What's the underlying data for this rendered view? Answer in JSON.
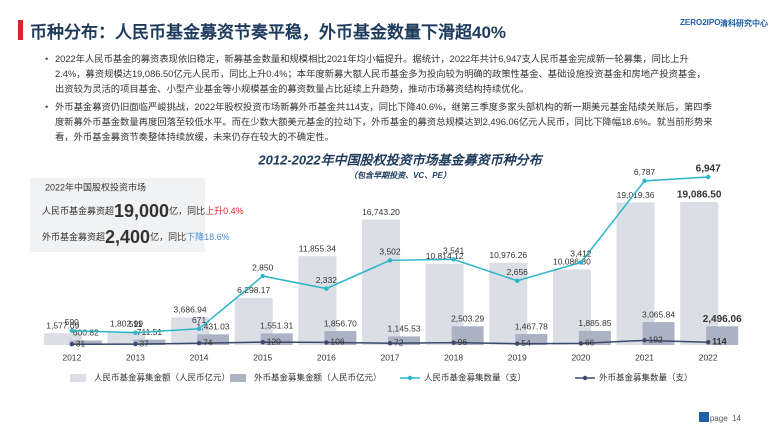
{
  "header": {
    "title": "币种分布：人民币基金募资节奏平稳，外币基金数量下滑超40%",
    "logos": [
      "ZERO2IPO",
      "清科研究中心"
    ]
  },
  "bullets": [
    "2022年人民币基金的募资表现依旧稳定，新募基金数量和规模相比2021年均小幅提升。据统计，2022年共计6,947支人民币基金完成新一轮募集，同比上升2.4%，募资规模达19,086.50亿元人民币，同比上升0.4%；本年度新募大额人民币基金多为投向较为明确的政策性基金、基础设施投资基金和房地产投资基金，出资较为灵活的项目基金、小型产业基金等小规模基金的募资数量占比延续上升趋势，推动市场募资结构持续优化。",
    "外币基金募资仍旧面临严峻挑战，2022年股权投资市场新募外币基金共114支，同比下降40.6%，继第三季度多家头部机构的新一期美元基金陆续关账后，第四季度新募外币基金数量再度回落至较低水平。而在少数大额美元基金的拉动下，外币基金的募资总规模达到2,496.06亿元人民币，同比下降幅18.6%。就当前形势来看，外币基金募资节奏整体持续放缓，未来仍存在较大的不确定性。"
  ],
  "info_box": {
    "heading": "2022年中国股权投资市场",
    "rmb_prefix": "人民币基金募资超",
    "rmb_value": "19,000",
    "rmb_suffix": "亿，同比",
    "rmb_change": "上升0.4%",
    "fx_prefix": "外币基金募资超",
    "fx_value": "2,400",
    "fx_suffix": "亿，同比",
    "fx_change": "下降18.6%"
  },
  "chart_data": {
    "type": "bar-line",
    "title": "2012-2022年中国股权投资市场基金募资币种分布",
    "subtitle": "（包含早期投资、VC、PE）",
    "categories": [
      "2012",
      "2013",
      "2014",
      "2015",
      "2016",
      "2017",
      "2018",
      "2019",
      "2020",
      "2021",
      "2022"
    ],
    "series": [
      {
        "name": "人民币基金募集金额（人民币亿元）",
        "kind": "bar",
        "color": "#dcdee5",
        "values": [
          1577.09,
          1802.99,
          3686.94,
          6298.17,
          11855.34,
          16743.2,
          10814.12,
          10976.26,
          10086.3,
          19019.36,
          19086.5
        ],
        "value_labels": [
          "1,577.09",
          "1,802.99",
          "3,686.94",
          "6,298.17",
          "11,855.34",
          "16,743.20",
          "10,814.12",
          "10,976.26",
          "10,086.30",
          "19,019.36",
          "19,086.50"
        ]
      },
      {
        "name": "外币基金募集金额（人民币亿元）",
        "kind": "bar",
        "color": "#aab2c4",
        "values": [
          600.82,
          711.51,
          1431.03,
          1551.31,
          1856.7,
          1145.53,
          2503.29,
          1467.78,
          1885.85,
          3065.84,
          2496.06
        ],
        "value_labels": [
          "600.82",
          "711.51",
          "1,431.03",
          "1,551.31",
          "1,856.70",
          "1,145.53",
          "2,503.29",
          "1,467.78",
          "1,885.85",
          "3,065.84",
          "2,496.06"
        ]
      },
      {
        "name": "人民币基金募集数量（支）",
        "kind": "line",
        "axis": "y2",
        "color": "#2bb5c8",
        "values": [
          590,
          511,
          671,
          2850,
          2332,
          3502,
          3541,
          2656,
          3412,
          6787,
          6947
        ],
        "value_labels": [
          "590",
          "511",
          "671",
          "2,850",
          "2,332",
          "3,502",
          "3,541",
          "2,656",
          "3,412",
          "6,787",
          "6,947"
        ]
      },
      {
        "name": "外币基金募集数量（支）",
        "kind": "line",
        "axis": "y2",
        "color": "#3b4a6b",
        "values": [
          31,
          37,
          74,
          120,
          106,
          72,
          96,
          54,
          66,
          192,
          114
        ]
      }
    ]
  },
  "footer": {
    "label": "page",
    "number": "14"
  }
}
